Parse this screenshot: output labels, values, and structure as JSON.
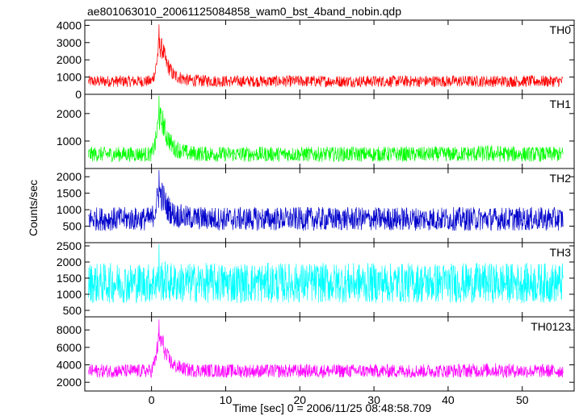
{
  "chart_data": {
    "type": "line",
    "title": "ae801063010_20061125084858_wam0_bst_4band_nobin.qdp",
    "xlabel": "Time [sec] 0 = 2006/11/25 08:48:58.709",
    "ylabel": "Counts/sec",
    "xlim": [
      -9,
      57
    ],
    "x_ticks": [
      0,
      10,
      20,
      30,
      40,
      50
    ],
    "grid": false,
    "legend": "none",
    "panels": [
      {
        "name": "TH0",
        "color": "#ff0000",
        "ylim": [
          0,
          4300
        ],
        "y_ticks": [
          0,
          1000,
          2000,
          3000,
          4000
        ],
        "x": [
          -8.5,
          -5,
          0,
          0.5,
          1,
          1.5,
          2,
          3,
          5,
          10,
          20,
          30,
          40,
          46,
          50,
          55.5
        ],
        "y_mean": [
          750,
          760,
          760,
          1300,
          2800,
          2600,
          1800,
          1100,
          800,
          760,
          760,
          760,
          760,
          760,
          760,
          760
        ],
        "noise": [
          280,
          280,
          280,
          350,
          550,
          500,
          420,
          350,
          300,
          280,
          280,
          280,
          280,
          280,
          280,
          280
        ],
        "peak": 4050
      },
      {
        "name": "TH1",
        "color": "#00ff00",
        "ylim": [
          0,
          2700
        ],
        "y_ticks": [
          1000,
          2000
        ],
        "x": [
          -8.5,
          -5,
          0,
          0.5,
          1,
          1.5,
          2,
          3,
          5,
          10,
          20,
          30,
          40,
          46,
          50,
          55.5
        ],
        "y_mean": [
          520,
          520,
          520,
          900,
          1800,
          1700,
          1200,
          750,
          550,
          520,
          520,
          520,
          520,
          540,
          520,
          520
        ],
        "noise": [
          230,
          230,
          230,
          300,
          420,
          400,
          340,
          280,
          240,
          230,
          230,
          230,
          230,
          260,
          230,
          230
        ],
        "peak": 2650
      },
      {
        "name": "TH2",
        "color": "#0000cc",
        "ylim": [
          0,
          2250
        ],
        "y_ticks": [
          500,
          1000,
          1500,
          2000
        ],
        "x": [
          -8.5,
          -5,
          0,
          0.5,
          1,
          1.5,
          2,
          3,
          5,
          10,
          20,
          30,
          40,
          46,
          50,
          55.5
        ],
        "y_mean": [
          720,
          720,
          720,
          1000,
          1500,
          1400,
          1100,
          850,
          750,
          720,
          720,
          720,
          720,
          720,
          720,
          720
        ],
        "noise": [
          300,
          300,
          300,
          350,
          420,
          400,
          360,
          320,
          300,
          300,
          300,
          300,
          300,
          300,
          300,
          300
        ],
        "peak": 2200
      },
      {
        "name": "TH3",
        "color": "#00ffff",
        "ylim": [
          300,
          2600
        ],
        "y_ticks": [
          500,
          1000,
          1500,
          2000,
          2500
        ],
        "x": [
          -8.5,
          -5,
          0,
          0.5,
          1,
          1.5,
          2,
          3,
          5,
          10,
          20,
          30,
          40,
          46,
          50,
          55.5
        ],
        "y_mean": [
          1350,
          1350,
          1350,
          1400,
          1450,
          1420,
          1380,
          1360,
          1350,
          1350,
          1350,
          1350,
          1350,
          1350,
          1350,
          1350
        ],
        "noise": [
          520,
          520,
          520,
          540,
          560,
          550,
          530,
          520,
          520,
          520,
          520,
          520,
          520,
          520,
          520,
          520
        ],
        "peak": 2550
      },
      {
        "name": "TH0123",
        "color": "#ff00ff",
        "ylim": [
          1000,
          9500
        ],
        "y_ticks": [
          2000,
          4000,
          6000,
          8000
        ],
        "x": [
          -8.5,
          -5,
          0,
          0.5,
          1,
          1.5,
          2,
          3,
          5,
          10,
          20,
          30,
          40,
          46,
          50,
          55.5
        ],
        "y_mean": [
          3300,
          3300,
          3300,
          4500,
          7000,
          6500,
          5000,
          3900,
          3400,
          3300,
          3300,
          3300,
          3300,
          3400,
          3300,
          3300
        ],
        "noise": [
          650,
          650,
          650,
          800,
          1100,
          1000,
          850,
          700,
          650,
          650,
          650,
          650,
          650,
          700,
          650,
          650
        ],
        "peak": 9200
      }
    ]
  }
}
